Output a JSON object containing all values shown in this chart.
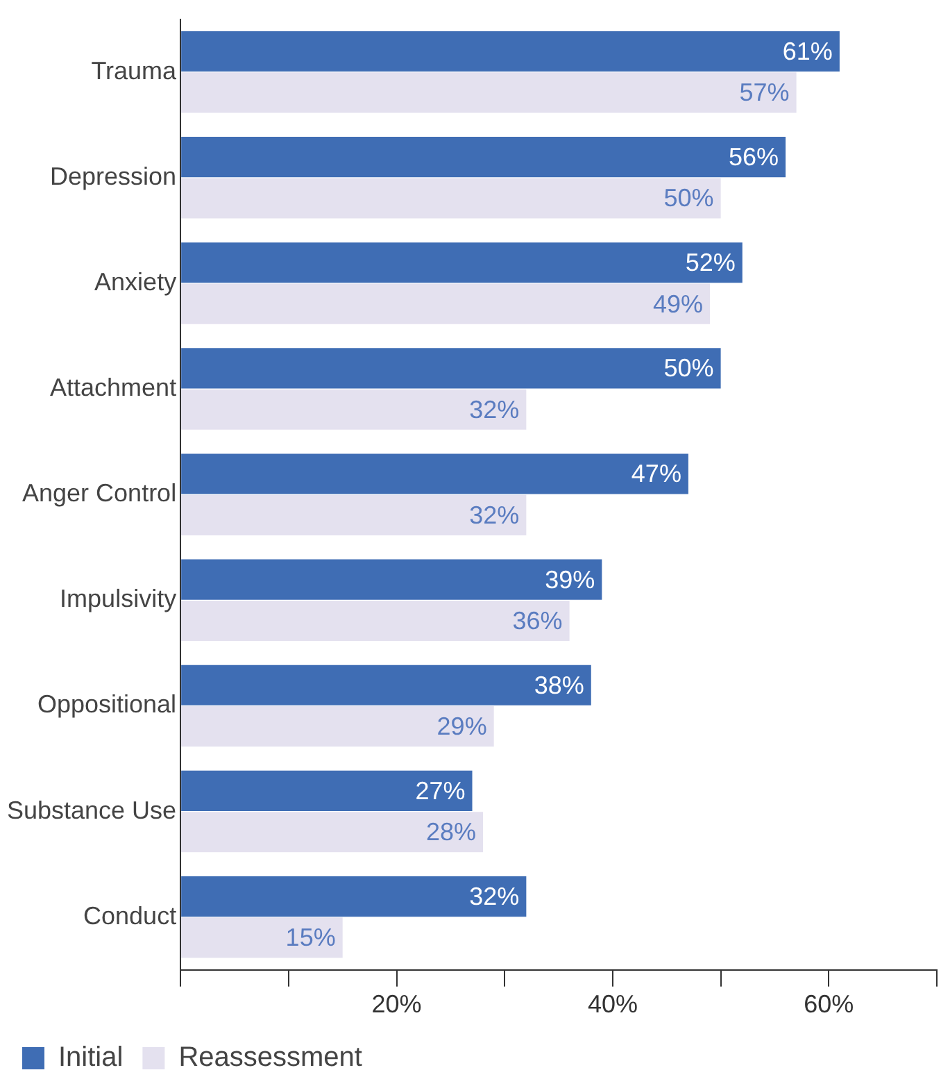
{
  "chart_data": {
    "type": "bar",
    "orientation": "horizontal",
    "categories": [
      "Trauma",
      "Depression",
      "Anxiety",
      "Attachment",
      "Anger Control",
      "Impulsivity",
      "Oppositional",
      "Substance Use",
      "Conduct"
    ],
    "series": [
      {
        "name": "Initial",
        "color": "#3f6db4",
        "values": [
          61,
          56,
          52,
          50,
          47,
          39,
          38,
          27,
          32
        ],
        "value_labels": [
          "61%",
          "56%",
          "52%",
          "50%",
          "47%",
          "39%",
          "38%",
          "27%",
          "32%"
        ]
      },
      {
        "name": "Reassessment",
        "color": "#e4e1ef",
        "values": [
          57,
          50,
          49,
          32,
          32,
          36,
          29,
          28,
          15
        ],
        "value_labels": [
          "57%",
          "50%",
          "49%",
          "32%",
          "32%",
          "36%",
          "29%",
          "28%",
          "15%"
        ]
      }
    ],
    "xlim": [
      0,
      70
    ],
    "xticks": [
      {
        "value": 0,
        "label": null
      },
      {
        "value": 10,
        "label": null
      },
      {
        "value": 20,
        "label": "20%"
      },
      {
        "value": 30,
        "label": null
      },
      {
        "value": 40,
        "label": "40%"
      },
      {
        "value": 50,
        "label": null
      },
      {
        "value": 60,
        "label": "60%"
      },
      {
        "value": 70,
        "label": null
      }
    ],
    "grid": false,
    "legend": "bottom left"
  }
}
